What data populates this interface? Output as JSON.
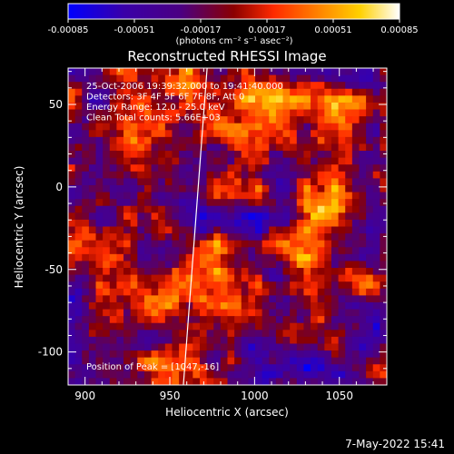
{
  "chart_data": {
    "type": "heatmap",
    "title": "Reconstructed RHESSI Image",
    "xlabel": "Heliocentric X (arcsec)",
    "ylabel": "Heliocentric Y (arcsec)",
    "xlim": [
      890,
      1078
    ],
    "ylim": [
      -120,
      72
    ],
    "x_ticks": [
      900,
      950,
      1000,
      1050
    ],
    "y_ticks": [
      50,
      0,
      -50,
      -100
    ],
    "colorbar": {
      "ticks": [
        "-0.00085",
        "-0.00051",
        "-0.00017",
        "0.00017",
        "0.00051",
        "0.00085"
      ],
      "range": [
        -0.00085,
        0.00085
      ],
      "unit_label": "(photons cm⁻² s⁻¹ asec⁻²)",
      "colormap": [
        "#0000ff",
        "#4b0082",
        "#8b0000",
        "#ff2a00",
        "#ff7f00",
        "#ffd000",
        "#ffffff"
      ]
    },
    "annotations": [
      "25-Oct-2006 19:39:32.000 to 19:41:40.000",
      "Detectors: 3F 4F 5F 6F 7F 8F, Att 0",
      "Energy Range: 12.0 - 25.0 keV",
      "Clean     Total counts: 5.66E+03"
    ],
    "peak_label": "Position of Peak = [1047,-16]",
    "peak_position": [
      1047,
      -16
    ],
    "limb_line": [
      [
        972,
        72
      ],
      [
        958,
        -120
      ]
    ],
    "grid": false,
    "legend": "none"
  },
  "footer": {
    "date": "7-May-2022 15:41"
  }
}
